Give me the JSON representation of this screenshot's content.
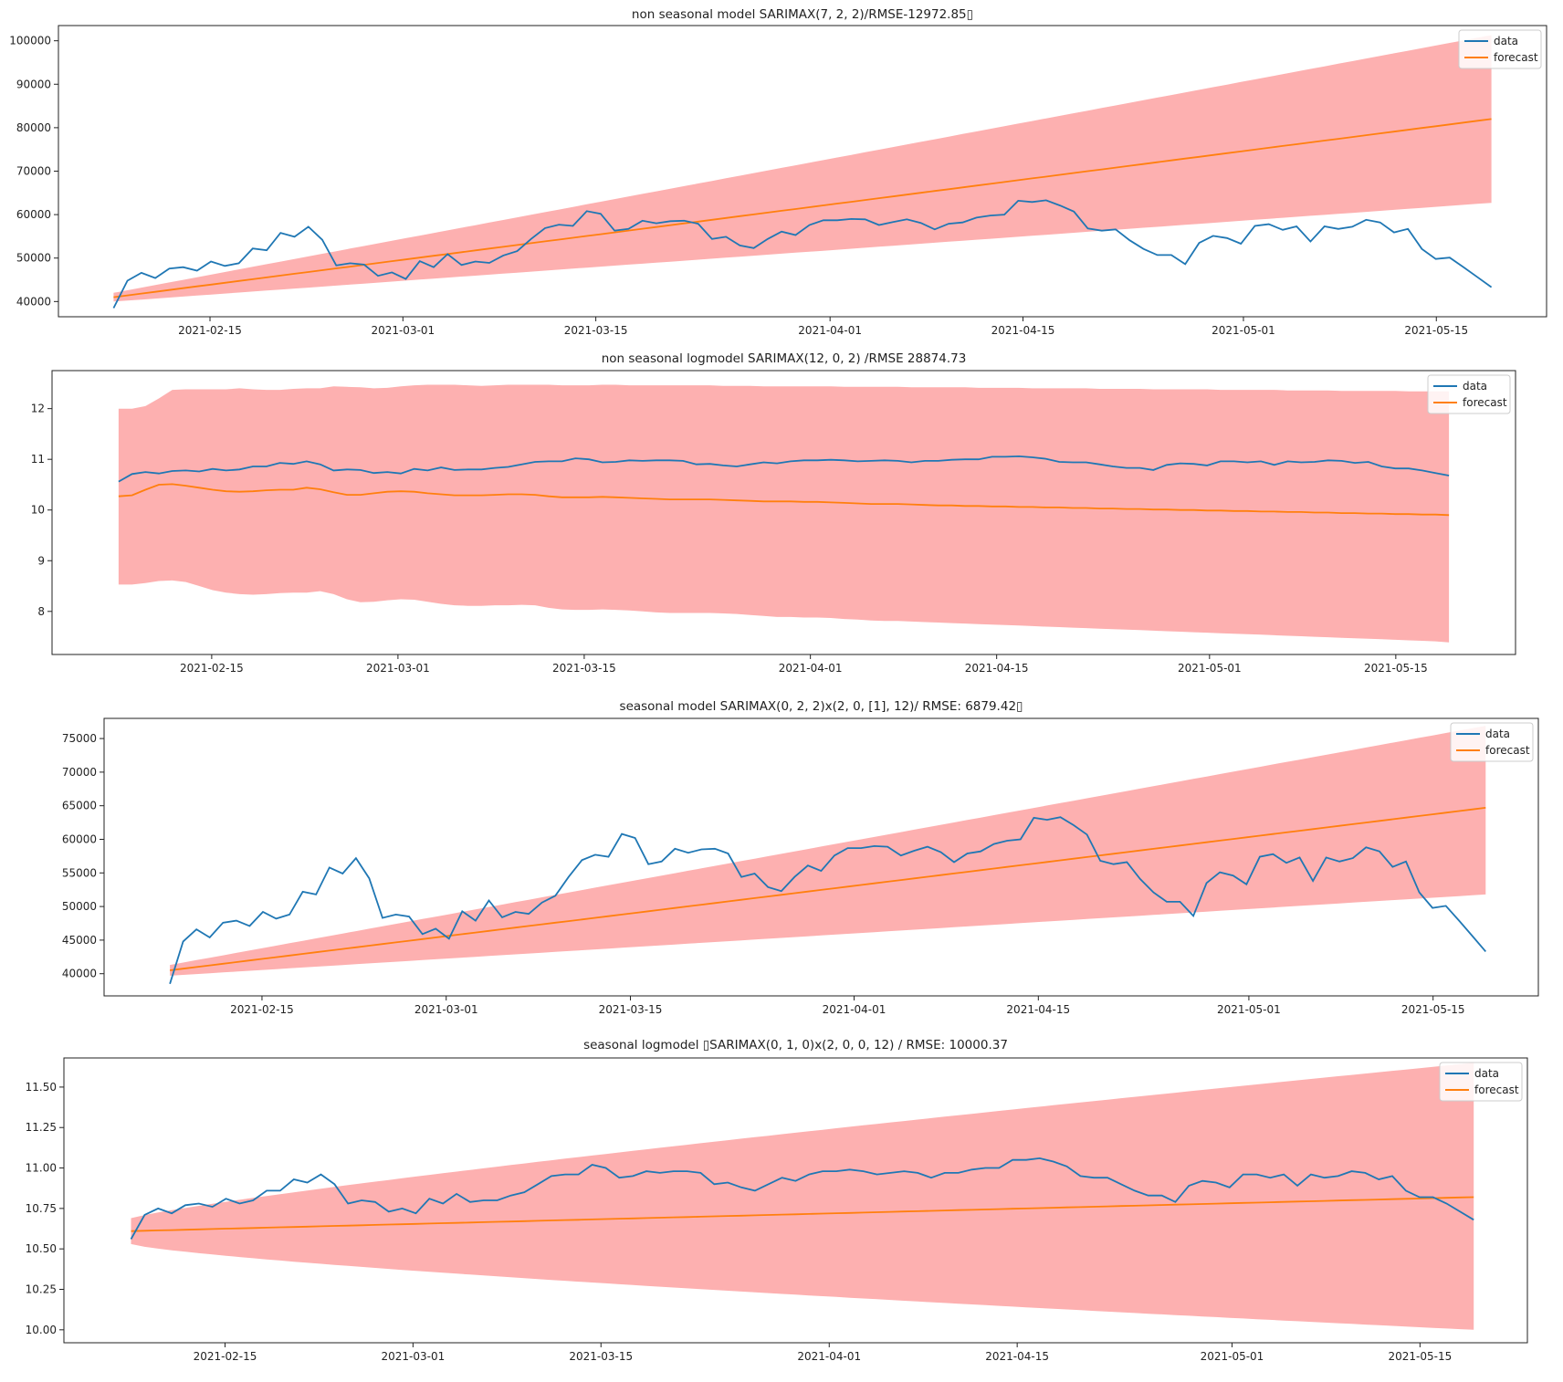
{
  "legend_labels": {
    "data": "data",
    "forecast": "forecast"
  },
  "colors": {
    "data": "#1f77b4",
    "forecast": "#ff7f0e",
    "band": "#fdb0b0"
  },
  "chart_data": [
    {
      "type": "line",
      "title": "non seasonal model SARIMAX(7, 2, 2)/RMSE-12972.85▯",
      "xlabel": "",
      "ylabel": "",
      "x_start": "2021-02-08",
      "x_end": "2021-05-19",
      "xlim": [
        "2021-02-04",
        "2021-05-23"
      ],
      "ylim": [
        36500,
        103500
      ],
      "yticks": [
        40000,
        50000,
        60000,
        70000,
        80000,
        90000,
        100000
      ],
      "xticks": [
        "2021-02-15",
        "2021-03-01",
        "2021-03-15",
        "2021-04-01",
        "2021-04-15",
        "2021-05-01",
        "2021-05-15"
      ],
      "legend_position": "top-right",
      "series": [
        {
          "name": "data",
          "values": [
            38500,
            44800,
            46600,
            45400,
            47600,
            47900,
            47100,
            49200,
            48200,
            48800,
            52200,
            51800,
            55800,
            54900,
            57200,
            54200,
            48300,
            48800,
            48500,
            45900,
            46700,
            45200,
            49300,
            47900,
            50900,
            48400,
            49200,
            48900,
            50600,
            51600,
            54400,
            56900,
            57700,
            57400,
            60800,
            60200,
            56300,
            56700,
            58600,
            58000,
            58500,
            58600,
            57900,
            54400,
            54900,
            52900,
            52300,
            54400,
            56100,
            55300,
            57600,
            58700,
            58700,
            59000,
            58900,
            57600,
            58300,
            58900,
            58100,
            56600,
            57900,
            58200,
            59300,
            59800,
            60000,
            63200,
            62900,
            63300,
            62100,
            60700,
            56800,
            56300,
            56600,
            54100,
            52100,
            50700,
            50700,
            48600,
            53500,
            55100,
            54600,
            53300,
            57400,
            57800,
            56500,
            57300,
            53800,
            57300,
            56700,
            57200,
            58800,
            58200,
            55900,
            56700,
            52100,
            49800,
            50100,
            47900,
            45600,
            43300
          ]
        },
        {
          "name": "forecast",
          "start": 41000,
          "end": 82000
        },
        {
          "name": "ci",
          "lower_start": 40000,
          "lower_end": 62700,
          "upper_start": 42000,
          "upper_end": 101300
        }
      ]
    },
    {
      "type": "line",
      "title": "non seasonal logmodel SARIMAX(12, 0, 2) /RMSE 28874.73",
      "xlabel": "",
      "ylabel": "",
      "x_start": "2021-02-08",
      "x_end": "2021-05-19",
      "xlim": [
        "2021-02-03",
        "2021-05-24"
      ],
      "ylim": [
        7.15,
        12.75
      ],
      "yticks": [
        8,
        9,
        10,
        11,
        12
      ],
      "xticks": [
        "2021-02-15",
        "2021-03-01",
        "2021-03-15",
        "2021-04-01",
        "2021-04-15",
        "2021-05-01",
        "2021-05-15"
      ],
      "legend_position": "top-right",
      "series": [
        {
          "name": "data",
          "values": [
            10.56,
            10.71,
            10.75,
            10.72,
            10.77,
            10.78,
            10.76,
            10.81,
            10.78,
            10.8,
            10.86,
            10.86,
            10.93,
            10.91,
            10.96,
            10.9,
            10.78,
            10.8,
            10.79,
            10.73,
            10.75,
            10.72,
            10.81,
            10.78,
            10.84,
            10.79,
            10.8,
            10.8,
            10.83,
            10.85,
            10.9,
            10.95,
            10.96,
            10.96,
            11.02,
            11.0,
            10.94,
            10.95,
            10.98,
            10.97,
            10.98,
            10.98,
            10.97,
            10.9,
            10.91,
            10.88,
            10.86,
            10.9,
            10.94,
            10.92,
            10.96,
            10.98,
            10.98,
            10.99,
            10.98,
            10.96,
            10.97,
            10.98,
            10.97,
            10.94,
            10.97,
            10.97,
            10.99,
            11.0,
            11.0,
            11.05,
            11.05,
            11.06,
            11.04,
            11.01,
            10.95,
            10.94,
            10.94,
            10.9,
            10.86,
            10.83,
            10.83,
            10.79,
            10.89,
            10.92,
            10.91,
            10.88,
            10.96,
            10.96,
            10.94,
            10.96,
            10.89,
            10.96,
            10.94,
            10.95,
            10.98,
            10.97,
            10.93,
            10.95,
            10.86,
            10.82,
            10.82,
            10.78,
            10.73,
            10.68
          ]
        },
        {
          "name": "forecast",
          "values": [
            10.27,
            10.29,
            10.4,
            10.5,
            10.51,
            10.48,
            10.44,
            10.4,
            10.37,
            10.36,
            10.37,
            10.39,
            10.4,
            10.4,
            10.44,
            10.41,
            10.35,
            10.3,
            10.3,
            10.33,
            10.36,
            10.37,
            10.36,
            10.33,
            10.31,
            10.29,
            10.29,
            10.29,
            10.3,
            10.31,
            10.31,
            10.3,
            10.27,
            10.25,
            10.25,
            10.25,
            10.26,
            10.25,
            10.24,
            10.23,
            10.22,
            10.21,
            10.21,
            10.21,
            10.21,
            10.2,
            10.19,
            10.18,
            10.17,
            10.17,
            10.17,
            10.16,
            10.16,
            10.15,
            10.14,
            10.13,
            10.12,
            10.12,
            10.12,
            10.11,
            10.1,
            10.09,
            10.09,
            10.08,
            10.08,
            10.07,
            10.07,
            10.06,
            10.06,
            10.05,
            10.05,
            10.04,
            10.04,
            10.03,
            10.03,
            10.02,
            10.02,
            10.01,
            10.01,
            10.0,
            10.0,
            9.99,
            9.99,
            9.98,
            9.98,
            9.97,
            9.97,
            9.96,
            9.96,
            9.95,
            9.95,
            9.94,
            9.94,
            9.93,
            9.93,
            9.92,
            9.92,
            9.91,
            9.91,
            9.9
          ]
        },
        {
          "name": "ci_upper",
          "values": [
            12.0,
            12.0,
            12.05,
            12.2,
            12.37,
            12.38,
            12.38,
            12.38,
            12.38,
            12.4,
            12.38,
            12.37,
            12.37,
            12.39,
            12.4,
            12.4,
            12.44,
            12.43,
            12.42,
            12.4,
            12.41,
            12.44,
            12.46,
            12.47,
            12.47,
            12.47,
            12.46,
            12.45,
            12.46,
            12.47,
            12.47,
            12.47,
            12.47,
            12.46,
            12.46,
            12.46,
            12.47,
            12.47,
            12.46,
            12.46,
            12.46,
            12.46,
            12.46,
            12.46,
            12.46,
            12.45,
            12.45,
            12.45,
            12.44,
            12.44,
            12.44,
            12.44,
            12.44,
            12.44,
            12.43,
            12.43,
            12.43,
            12.43,
            12.43,
            12.42,
            12.42,
            12.42,
            12.42,
            12.42,
            12.41,
            12.41,
            12.41,
            12.41,
            12.4,
            12.4,
            12.4,
            12.4,
            12.4,
            12.39,
            12.39,
            12.39,
            12.39,
            12.38,
            12.38,
            12.38,
            12.38,
            12.38,
            12.37,
            12.37,
            12.37,
            12.37,
            12.37,
            12.36,
            12.36,
            12.36,
            12.36,
            12.35,
            12.35,
            12.35,
            12.35,
            12.35,
            12.34,
            12.34,
            12.34,
            12.34
          ]
        },
        {
          "name": "ci_lower",
          "values": [
            8.53,
            8.53,
            8.56,
            8.6,
            8.61,
            8.58,
            8.5,
            8.42,
            8.37,
            8.34,
            8.33,
            8.34,
            8.36,
            8.37,
            8.37,
            8.4,
            8.34,
            8.24,
            8.18,
            8.19,
            8.22,
            8.24,
            8.23,
            8.19,
            8.15,
            8.12,
            8.11,
            8.11,
            8.12,
            8.12,
            8.13,
            8.12,
            8.07,
            8.04,
            8.03,
            8.03,
            8.04,
            8.03,
            8.02,
            8.0,
            7.98,
            7.97,
            7.97,
            7.97,
            7.97,
            7.96,
            7.95,
            7.93,
            7.91,
            7.89,
            7.89,
            7.88,
            7.88,
            7.87,
            7.85,
            7.84,
            7.82,
            7.81,
            7.81,
            7.8,
            7.79,
            7.78,
            7.77,
            7.76,
            7.75,
            7.74,
            7.73,
            7.72,
            7.71,
            7.7,
            7.69,
            7.68,
            7.67,
            7.66,
            7.65,
            7.64,
            7.63,
            7.62,
            7.61,
            7.6,
            7.59,
            7.58,
            7.57,
            7.56,
            7.55,
            7.54,
            7.53,
            7.52,
            7.51,
            7.5,
            7.49,
            7.48,
            7.47,
            7.46,
            7.45,
            7.44,
            7.43,
            7.42,
            7.41,
            7.39
          ]
        }
      ]
    },
    {
      "type": "line",
      "title": "seasonal model SARIMAX(0, 2, 2)x(2, 0, [1], 12)/ RMSE: 6879.42▯",
      "xlabel": "",
      "ylabel": "",
      "x_start": "2021-02-08",
      "x_end": "2021-05-19",
      "xlim": [
        "2021-02-03",
        "2021-05-23"
      ],
      "ylim": [
        36700,
        78000
      ],
      "yticks": [
        40000,
        45000,
        50000,
        55000,
        60000,
        65000,
        70000,
        75000
      ],
      "xticks": [
        "2021-02-15",
        "2021-03-01",
        "2021-03-15",
        "2021-04-01",
        "2021-04-15",
        "2021-05-01",
        "2021-05-15"
      ],
      "legend_position": "top-right",
      "series": [
        {
          "name": "data",
          "values": [
            38500,
            44800,
            46600,
            45400,
            47600,
            47900,
            47100,
            49200,
            48200,
            48800,
            52200,
            51800,
            55800,
            54900,
            57200,
            54200,
            48300,
            48800,
            48500,
            45900,
            46700,
            45200,
            49300,
            47900,
            50900,
            48400,
            49200,
            48900,
            50600,
            51600,
            54400,
            56900,
            57700,
            57400,
            60800,
            60200,
            56300,
            56700,
            58600,
            58000,
            58500,
            58600,
            57900,
            54400,
            54900,
            52900,
            52300,
            54400,
            56100,
            55300,
            57600,
            58700,
            58700,
            59000,
            58900,
            57600,
            58300,
            58900,
            58100,
            56600,
            57900,
            58200,
            59300,
            59800,
            60000,
            63200,
            62900,
            63300,
            62100,
            60700,
            56800,
            56300,
            56600,
            54100,
            52100,
            50700,
            50700,
            48600,
            53500,
            55100,
            54600,
            53300,
            57400,
            57800,
            56500,
            57300,
            53800,
            57300,
            56700,
            57200,
            58800,
            58200,
            55900,
            56700,
            52100,
            49800,
            50100,
            47900,
            45600,
            43300
          ]
        },
        {
          "name": "forecast",
          "start": 40500,
          "end": 64700
        },
        {
          "name": "ci",
          "lower_start": 39700,
          "lower_end": 51800,
          "upper_start": 41300,
          "upper_end": 76900
        }
      ]
    },
    {
      "type": "line",
      "title": "seasonal logmodel ▯SARIMAX(0, 1, 0)x(2, 0, 0, 12) / RMSE: 10000.37",
      "xlabel": "",
      "ylabel": "",
      "x_start": "2021-02-08",
      "x_end": "2021-05-19",
      "xlim": [
        "2021-02-03",
        "2021-05-23"
      ],
      "ylim": [
        9.92,
        11.68
      ],
      "yticks": [
        10.0,
        10.25,
        10.5,
        10.75,
        11.0,
        11.25,
        11.5
      ],
      "xticks": [
        "2021-02-15",
        "2021-03-01",
        "2021-03-15",
        "2021-04-01",
        "2021-04-15",
        "2021-05-01",
        "2021-05-15"
      ],
      "legend_position": "top-right",
      "series": [
        {
          "name": "data",
          "values": [
            10.56,
            10.71,
            10.75,
            10.72,
            10.77,
            10.78,
            10.76,
            10.81,
            10.78,
            10.8,
            10.86,
            10.86,
            10.93,
            10.91,
            10.96,
            10.9,
            10.78,
            10.8,
            10.79,
            10.73,
            10.75,
            10.72,
            10.81,
            10.78,
            10.84,
            10.79,
            10.8,
            10.8,
            10.83,
            10.85,
            10.9,
            10.95,
            10.96,
            10.96,
            11.02,
            11.0,
            10.94,
            10.95,
            10.98,
            10.97,
            10.98,
            10.98,
            10.97,
            10.9,
            10.91,
            10.88,
            10.86,
            10.9,
            10.94,
            10.92,
            10.96,
            10.98,
            10.98,
            10.99,
            10.98,
            10.96,
            10.97,
            10.98,
            10.97,
            10.94,
            10.97,
            10.97,
            10.99,
            11.0,
            11.0,
            11.05,
            11.05,
            11.06,
            11.04,
            11.01,
            10.95,
            10.94,
            10.94,
            10.9,
            10.86,
            10.83,
            10.83,
            10.79,
            10.89,
            10.92,
            10.91,
            10.88,
            10.96,
            10.96,
            10.94,
            10.96,
            10.89,
            10.96,
            10.94,
            10.95,
            10.98,
            10.97,
            10.93,
            10.95,
            10.86,
            10.82,
            10.82,
            10.78,
            10.73,
            10.68
          ]
        },
        {
          "name": "forecast",
          "start": 10.61,
          "end": 10.82
        },
        {
          "name": "ci",
          "lower_start": 10.53,
          "lower_end": 10.0,
          "upper_start": 10.69,
          "upper_end": 11.65
        }
      ]
    }
  ]
}
